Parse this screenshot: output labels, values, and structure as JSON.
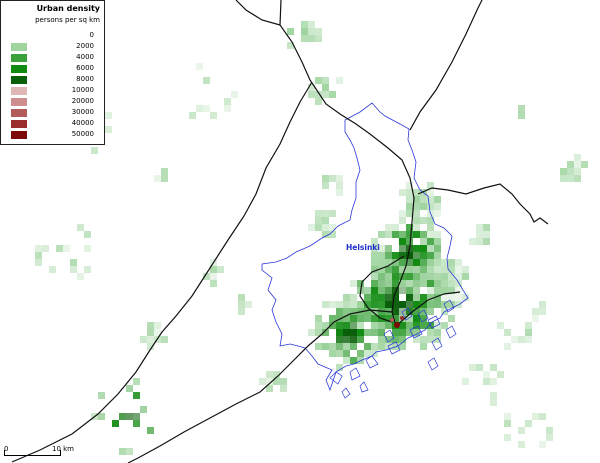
{
  "legend": {
    "title": "Urban density",
    "subtitle": "persons per sq km",
    "items": [
      {
        "value": "0",
        "color": ""
      },
      {
        "value": "2000",
        "color": "#9fd49f"
      },
      {
        "value": "4000",
        "color": "#3aa13a"
      },
      {
        "value": "6000",
        "color": "#108a10"
      },
      {
        "value": "8000",
        "color": "#0a5e0a"
      },
      {
        "value": "10000",
        "color": "#e0b7b7"
      },
      {
        "value": "20000",
        "color": "#cf8d8d"
      },
      {
        "value": "30000",
        "color": "#b35a5a"
      },
      {
        "value": "40000",
        "color": "#9a2d2d"
      },
      {
        "value": "50000",
        "color": "#7d0a0a"
      }
    ]
  },
  "map": {
    "city_label": "Helsinki",
    "boundary_color": "#2b39d8",
    "rail_color": "#111111"
  },
  "scale": {
    "start_label": "0",
    "end_label": "10 km"
  }
}
